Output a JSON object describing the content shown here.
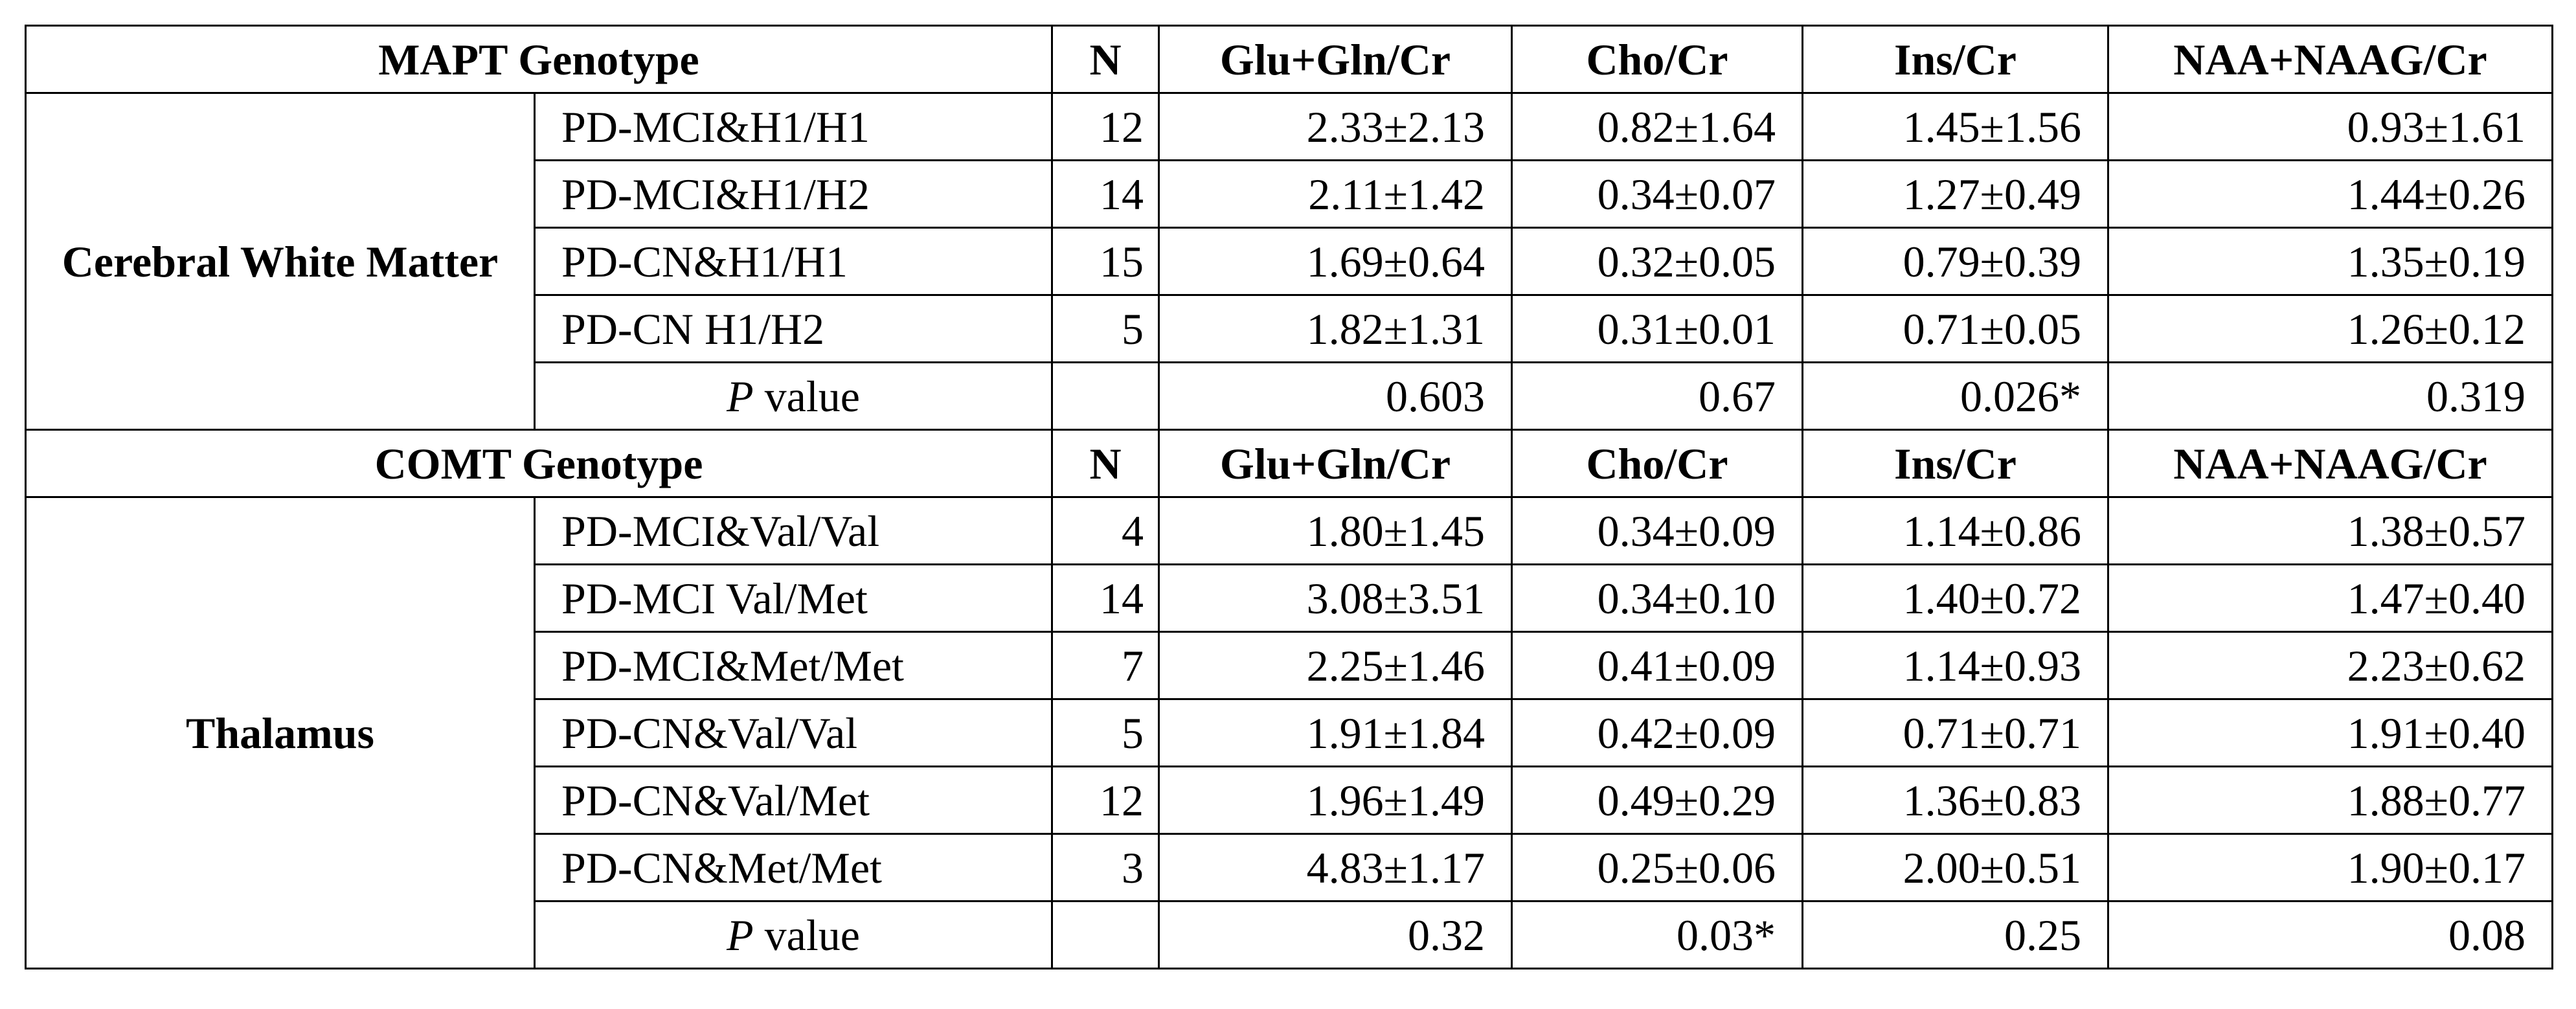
{
  "sections": [
    {
      "header": [
        "MAPT Genotype",
        "N",
        "Glu+Gln/Cr",
        "Cho/Cr",
        "Ins/Cr",
        "NAA+NAAG/Cr"
      ],
      "region": "Cerebral White Matter",
      "rows": [
        [
          "PD-MCI&H1/H1",
          "12",
          "2.33±2.13",
          "0.82±1.64",
          "1.45±1.56",
          "0.93±1.61"
        ],
        [
          "PD-MCI&H1/H2",
          "14",
          "2.11±1.42",
          "0.34±0.07",
          "1.27±0.49",
          "1.44±0.26"
        ],
        [
          "PD-CN&H1/H1",
          "15",
          "1.69±0.64",
          "0.32±0.05",
          "0.79±0.39",
          "1.35±0.19"
        ],
        [
          "PD-CN H1/H2",
          "5",
          "1.82±1.31",
          "0.31±0.01",
          "0.71±0.05",
          "1.26±0.12"
        ]
      ],
      "p_row": {
        "label_italic": "P",
        "label_rest": "value",
        "values": [
          "0.603",
          "0.67",
          "0.026*",
          "0.319"
        ]
      }
    },
    {
      "header": [
        "COMT Genotype",
        "N",
        "Glu+Gln/Cr",
        "Cho/Cr",
        "Ins/Cr",
        "NAA+NAAG/Cr"
      ],
      "region": "Thalamus",
      "rows": [
        [
          "PD-MCI&Val/Val",
          "4",
          "1.80±1.45",
          "0.34±0.09",
          "1.14±0.86",
          "1.38±0.57"
        ],
        [
          "PD-MCI Val/Met",
          "14",
          "3.08±3.51",
          "0.34±0.10",
          "1.40±0.72",
          "1.47±0.40"
        ],
        [
          "PD-MCI&Met/Met",
          "7",
          "2.25±1.46",
          "0.41±0.09",
          "1.14±0.93",
          "2.23±0.62"
        ],
        [
          "PD-CN&Val/Val",
          "5",
          "1.91±1.84",
          "0.42±0.09",
          "0.71±0.71",
          "1.91±0.40"
        ],
        [
          "PD-CN&Val/Met",
          "12",
          "1.96±1.49",
          "0.49±0.29",
          "1.36±0.83",
          "1.88±0.77"
        ],
        [
          "PD-CN&Met/Met",
          "3",
          "4.83±1.17",
          "0.25±0.06",
          "2.00±0.51",
          "1.90±0.17"
        ]
      ],
      "p_row": {
        "label_italic": "P",
        "label_rest": "value",
        "values": [
          "0.32",
          "0.03*",
          "0.25",
          "0.08"
        ]
      }
    }
  ]
}
